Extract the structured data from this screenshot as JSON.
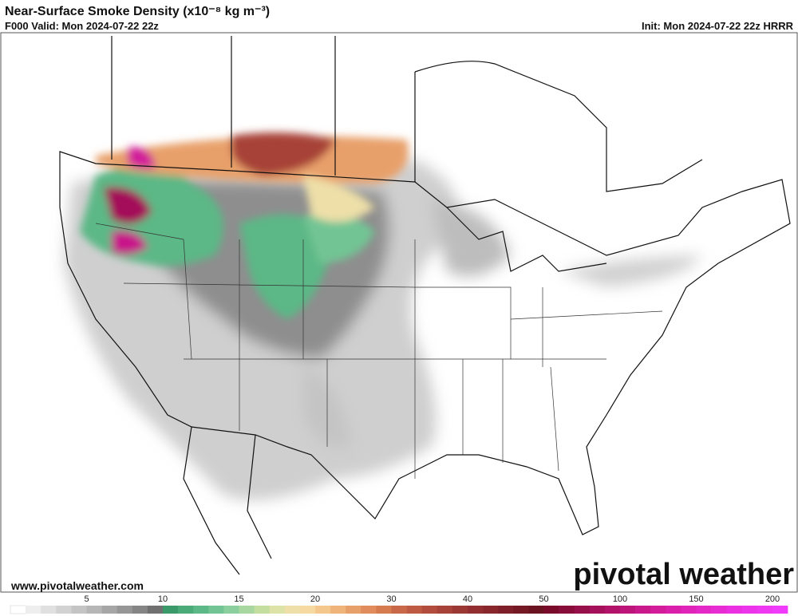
{
  "header": {
    "title": "Near-Surface Smoke Density (x10⁻⁸ kg m⁻³)",
    "valid": "F000 Valid: Mon 2024-07-22 22z",
    "init": "Init: Mon 2024-07-22 22z HRRR"
  },
  "footer": {
    "url": "www.pivotalweather.com",
    "logo": "pivotal weather"
  },
  "colorbar": {
    "ticks": [
      5,
      10,
      15,
      20,
      30,
      40,
      50,
      100,
      150,
      200
    ],
    "colors": [
      "#ffffff",
      "#eeeeee",
      "#e0e0e0",
      "#d2d2d2",
      "#c4c4c4",
      "#b6b6b6",
      "#a6a6a6",
      "#969696",
      "#858585",
      "#707070",
      "#3a9a6a",
      "#4aaa78",
      "#5cb886",
      "#72c494",
      "#8bcf9e",
      "#a8d8a0",
      "#c4dea0",
      "#dde3a6",
      "#eedfa8",
      "#f6d9a0",
      "#f4c88c",
      "#eeb47a",
      "#e8a06a",
      "#e08c5c",
      "#d67a50",
      "#c96848",
      "#be5a42",
      "#b24c3c",
      "#a74238",
      "#9c3834",
      "#922e30",
      "#88262c",
      "#7e1e28",
      "#741824",
      "#6a1220",
      "#7a0a2a",
      "#880c3a",
      "#960e4a",
      "#a4105a",
      "#b2126a",
      "#bd147a",
      "#c8188a",
      "#d21c9a",
      "#da20aa",
      "#e024ba",
      "#e428c8",
      "#e82cd4",
      "#ea30e0",
      "#ec34ea",
      "#ee38f2",
      "#f03cfa"
    ]
  }
}
